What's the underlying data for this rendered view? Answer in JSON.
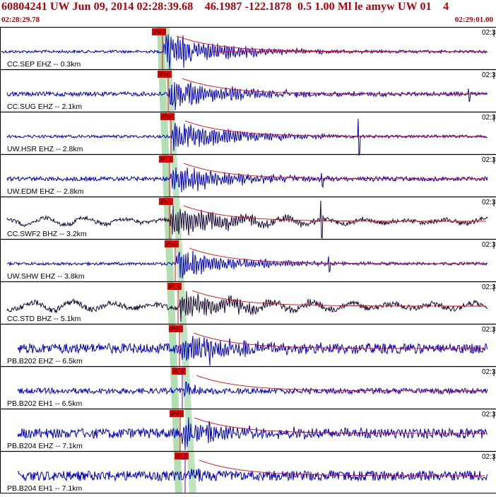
{
  "header": {
    "title": "60804241 UW Jun 09, 2014 02:28:39.68    46.1987 -122.1878  0.5 1.00 Ml le amyw UW 01    4",
    "start_time": "02:28:29.78",
    "end_time": "02:29:01.00",
    "time_tick_label": "02:3"
  },
  "colors": {
    "header_text": "#b0000a",
    "trace_blue": "#0000cc",
    "trace_dark": "#1a0a3a",
    "pick_red": "#ee0000",
    "window_green": "#a8dca8"
  },
  "traces": [
    {
      "label": "CC.SEP EHZ -- 0.3km",
      "pick": "iPd0",
      "color": "blue",
      "onset": 230,
      "amp": 26,
      "noise": 2,
      "long": 0,
      "hasS": false,
      "spike": null
    },
    {
      "label": "CC.SUG EHZ -- 2.1km",
      "pick": "iPc0",
      "color": "blue",
      "onset": 238,
      "amp": 22,
      "noise": 3,
      "long": 0,
      "hasS": false,
      "spike": 664
    },
    {
      "label": "UW.HSR EHZ -- 2.8km",
      "pick": "iPc0",
      "color": "blue",
      "onset": 242,
      "amp": 22,
      "noise": 2,
      "long": 0,
      "hasS": false,
      "spike": 508
    },
    {
      "label": "UW.EDM EHZ -- 2.8km",
      "pick": "iP_1",
      "color": "blue",
      "onset": 240,
      "amp": 20,
      "noise": 3,
      "long": 0,
      "hasS": false,
      "spike": 456
    },
    {
      "label": "CC.SWF2 BHZ -- 3.2km",
      "pick": "iPc1",
      "color": "dark",
      "onset": 240,
      "amp": 24,
      "noise": 3,
      "long": 5,
      "hasS": false,
      "spike": 455
    },
    {
      "label": "UW.SHW EHZ -- 3.8km",
      "pick": "iPc0",
      "color": "blue",
      "onset": 248,
      "amp": 20,
      "noise": 2,
      "long": 0,
      "hasS": false,
      "spike": 466
    },
    {
      "label": "CC.STD BHZ -- 5.1km",
      "pick": "iP_1",
      "color": "dark",
      "onset": 252,
      "amp": 18,
      "noise": 4,
      "long": 6,
      "hasS": false,
      "spike": 337
    },
    {
      "label": "PB.B202 EHZ -- 6.5km",
      "pick": "iPd0",
      "color": "blue",
      "onset": 254,
      "amp": 18,
      "noise": 7,
      "long": 0,
      "hasS": false,
      "spike": 296
    },
    {
      "label": "PB.B202 EH1 -- 6.5km",
      "pick": "iS_1",
      "color": "blue",
      "onset": 258,
      "amp": 14,
      "noise": 4,
      "long": 0,
      "hasS": true,
      "spike": null
    },
    {
      "label": "PB.B204 EHZ -- 7.1km",
      "pick": "iPd1",
      "color": "blue",
      "onset": 255,
      "amp": 18,
      "noise": 7,
      "long": 0,
      "hasS": false,
      "spike": 300
    },
    {
      "label": "PB.B204 EH1 -- 7.1km",
      "pick": "iS_1",
      "color": "blue",
      "onset": 262,
      "amp": 14,
      "noise": 7,
      "long": 0,
      "hasS": true,
      "spike": null
    }
  ]
}
